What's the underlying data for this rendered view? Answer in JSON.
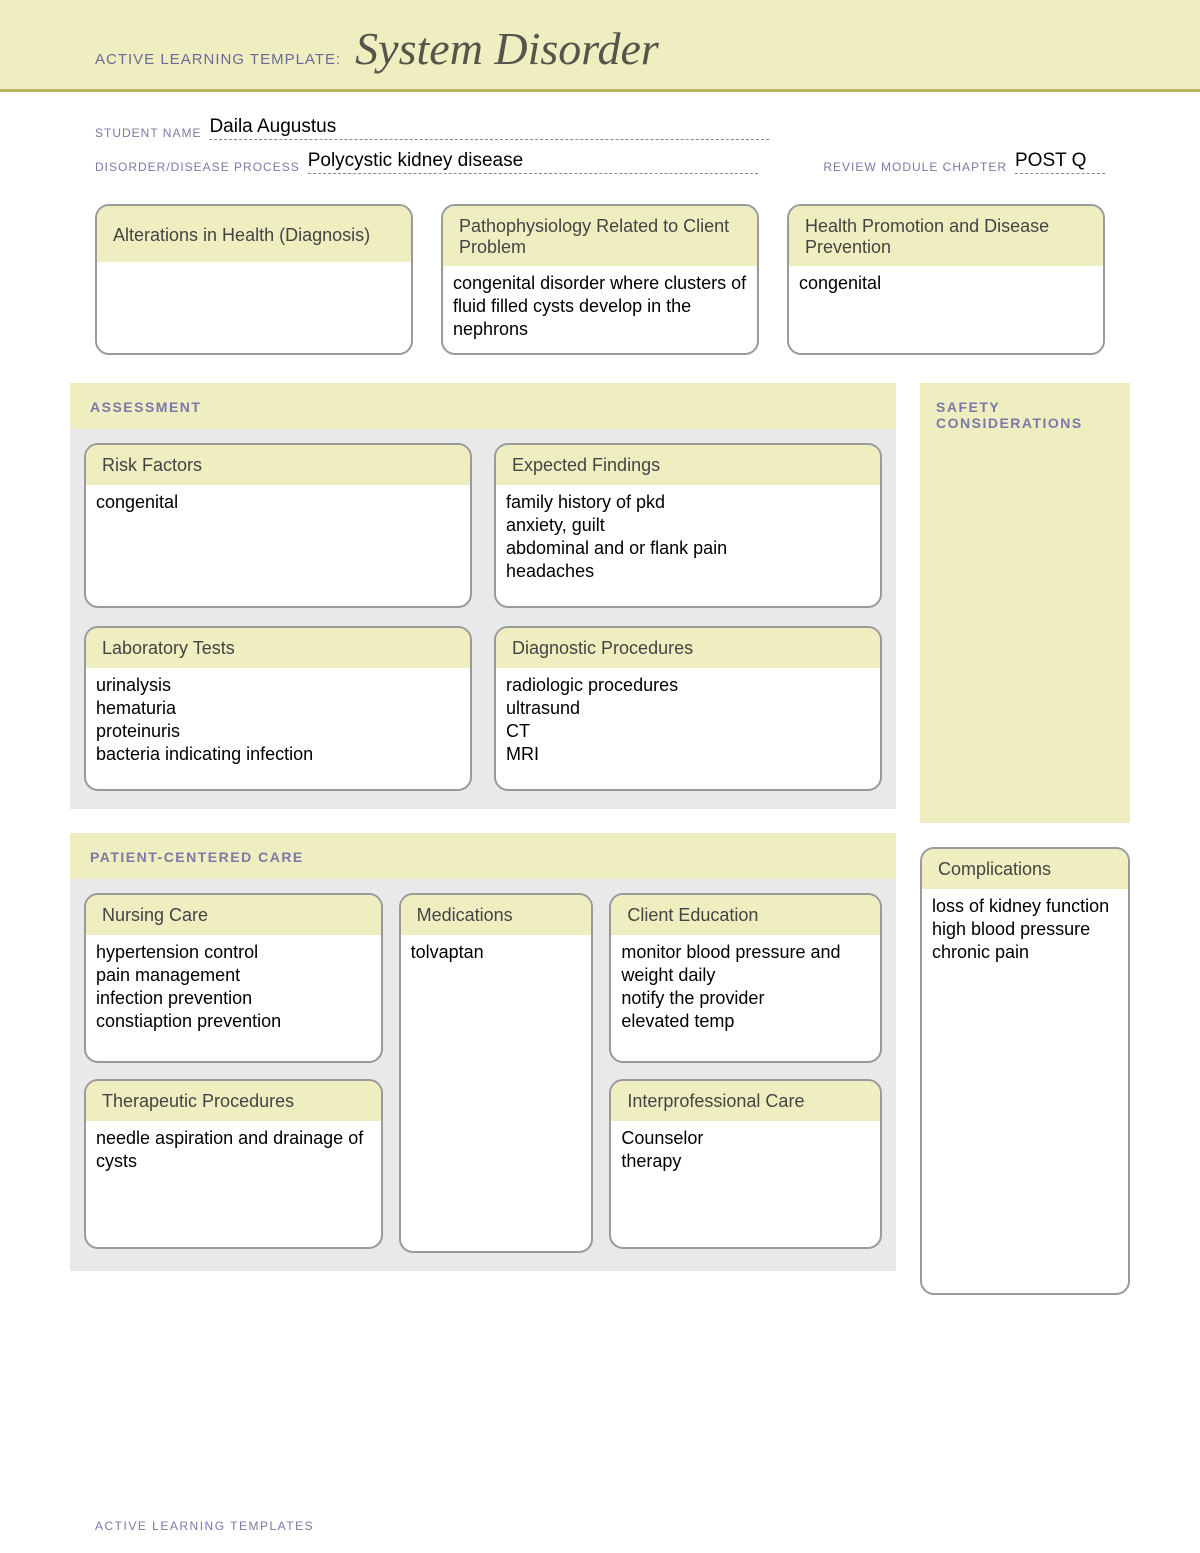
{
  "colors": {
    "band_bg": "#eeeec0",
    "band_border": "#b7b85a",
    "label_purple": "#7a79a8",
    "card_border": "#9a9a9a",
    "inner_bg": "#e9e9e9",
    "title_color": "#55554a"
  },
  "header": {
    "prefix": "ACTIVE LEARNING TEMPLATE:",
    "title": "System Disorder"
  },
  "fields": {
    "student_label": "STUDENT NAME",
    "student_value": "Daila Augustus",
    "disorder_label": "DISORDER/DISEASE PROCESS",
    "disorder_value": "Polycystic kidney disease",
    "chapter_label": "REVIEW MODULE CHAPTER",
    "chapter_value": "POST Q"
  },
  "top_boxes": {
    "alterations": {
      "title": "Alterations in\nHealth (Diagnosis)",
      "body": ""
    },
    "patho": {
      "title": "Pathophysiology Related\nto Client Problem",
      "body": "congenital disorder where clusters of fluid filled cysts develop in the nephrons"
    },
    "health_promo": {
      "title": "Health Promotion and\nDisease Prevention",
      "body": "congenital"
    }
  },
  "assessment": {
    "section_title": "ASSESSMENT",
    "risk": {
      "title": "Risk Factors",
      "body": "congenital"
    },
    "findings": {
      "title": "Expected Findings",
      "body": "family history of pkd\nanxiety, guilt\nabdominal and or flank pain\nheadaches"
    },
    "labs": {
      "title": "Laboratory Tests",
      "body": "urinalysis\nhematuria\nproteinuris\nbacteria indicating infection"
    },
    "diag": {
      "title": "Diagnostic Procedures",
      "body": "radiologic procedures\nultrasund\nCT\nMRI"
    }
  },
  "safety": {
    "title": "SAFETY\nCONSIDERATIONS"
  },
  "pcc": {
    "section_title": "PATIENT-CENTERED CARE",
    "nursing": {
      "title": "Nursing Care",
      "body": "hypertension control\npain management\ninfection prevention\nconstiaption prevention"
    },
    "therapeutic": {
      "title": "Therapeutic Procedures",
      "body": "needle aspiration and drainage of cysts"
    },
    "meds": {
      "title": "Medications",
      "body": "tolvaptan"
    },
    "education": {
      "title": "Client Education",
      "body": "monitor blood pressure and weight daily\nnotify the provider\nelevated temp"
    },
    "interprof": {
      "title": "Interprofessional Care",
      "body": "Counselor\ntherapy"
    }
  },
  "complications": {
    "title": "Complications",
    "body": "loss of kidney function\nhigh blood pressure\nchronic pain"
  },
  "footer": "ACTIVE LEARNING TEMPLATES"
}
